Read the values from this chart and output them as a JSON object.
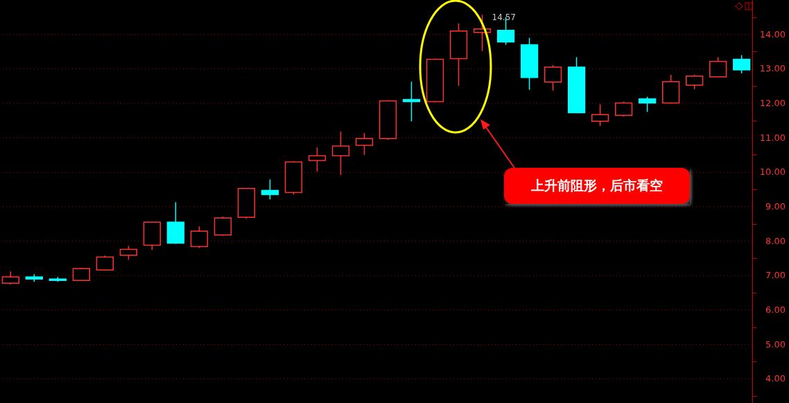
{
  "chart_data": {
    "type": "candlestick",
    "categories": [
      null,
      null,
      null,
      null,
      null,
      null,
      null,
      null,
      null,
      null,
      null,
      null,
      null,
      null,
      null,
      null,
      null,
      null,
      null,
      null,
      null,
      null,
      null,
      null,
      null,
      null,
      null,
      null,
      null,
      null,
      null,
      null
    ],
    "ohlc": [
      [
        6.78,
        7.12,
        6.74,
        6.96
      ],
      [
        6.96,
        7.04,
        6.82,
        6.9
      ],
      [
        6.9,
        6.96,
        6.82,
        6.86
      ],
      [
        6.86,
        7.22,
        6.84,
        7.2
      ],
      [
        7.16,
        7.58,
        7.14,
        7.54
      ],
      [
        7.59,
        7.86,
        7.46,
        7.76
      ],
      [
        7.88,
        8.55,
        7.74,
        8.55
      ],
      [
        8.55,
        9.13,
        7.92,
        7.94
      ],
      [
        7.84,
        8.43,
        7.8,
        8.29
      ],
      [
        8.18,
        8.71,
        8.16,
        8.67
      ],
      [
        8.69,
        9.55,
        8.65,
        9.53
      ],
      [
        9.47,
        9.79,
        9.21,
        9.35
      ],
      [
        9.41,
        10.32,
        9.35,
        10.3
      ],
      [
        10.34,
        10.72,
        10.02,
        10.48
      ],
      [
        10.48,
        11.18,
        9.92,
        10.76
      ],
      [
        10.78,
        11.14,
        10.5,
        10.98
      ],
      [
        10.98,
        12.09,
        10.94,
        12.07
      ],
      [
        12.11,
        12.63,
        11.48,
        12.05
      ],
      [
        12.05,
        13.3,
        12.03,
        13.28
      ],
      [
        13.3,
        14.32,
        12.51,
        14.1
      ],
      [
        14.06,
        14.57,
        13.52,
        14.16
      ],
      [
        14.12,
        14.5,
        13.7,
        13.78
      ],
      [
        13.7,
        13.9,
        12.39,
        12.75
      ],
      [
        12.62,
        13.11,
        12.37,
        13.05
      ],
      [
        13.05,
        13.34,
        11.73,
        11.73
      ],
      [
        11.48,
        11.97,
        11.34,
        11.67
      ],
      [
        11.65,
        12.05,
        11.61,
        12.01
      ],
      [
        12.13,
        12.19,
        11.75,
        12.01
      ],
      [
        12.01,
        12.83,
        11.99,
        12.63
      ],
      [
        12.53,
        12.83,
        12.41,
        12.79
      ],
      [
        12.77,
        13.34,
        12.77,
        13.22
      ],
      [
        13.28,
        13.4,
        12.87,
        12.97
      ]
    ],
    "colors": [
      "#ff3232",
      "#00ffff",
      "#00ffff",
      "#ff3232",
      "#ff3232",
      "#ff3232",
      "#ff3232",
      "#00ffff",
      "#ff3232",
      "#ff3232",
      "#ff3232",
      "#00ffff",
      "#ff3232",
      "#ff3232",
      "#ff3232",
      "#ff3232",
      "#ff3232",
      "#00ffff",
      "#ff3232",
      "#ff3232",
      "#ff3232",
      "#00ffff",
      "#00ffff",
      "#ff3232",
      "#00ffff",
      "#ff3232",
      "#ff3232",
      "#00ffff",
      "#ff3232",
      "#ff3232",
      "#ff3232",
      "#00ffff"
    ],
    "ylim": [
      3.3,
      15
    ],
    "yticks": [
      {
        "value": 4,
        "label": "4.00"
      },
      {
        "value": 5,
        "label": "5.00"
      },
      {
        "value": 6,
        "label": "6.00"
      },
      {
        "value": 7,
        "label": "7.00"
      },
      {
        "value": 8,
        "label": "8.00"
      },
      {
        "value": 9,
        "label": "9.00"
      },
      {
        "value": 10,
        "label": "10.00"
      },
      {
        "value": 11,
        "label": "11.00"
      },
      {
        "value": 12,
        "label": "12.00"
      },
      {
        "value": 13,
        "label": "13.00"
      },
      {
        "value": 14,
        "label": "14.00"
      },
      {
        "value": 3.5,
        "label": null
      },
      {
        "value": 4.5,
        "label": null
      },
      {
        "value": 5.5,
        "label": null
      },
      {
        "value": 6.5,
        "label": null
      },
      {
        "value": 7.5,
        "label": null
      },
      {
        "value": 8.5,
        "label": null
      },
      {
        "value": 9.5,
        "label": null
      },
      {
        "value": 10.5,
        "label": null
      },
      {
        "value": 11.5,
        "label": null
      },
      {
        "value": 12.5,
        "label": null
      },
      {
        "value": 13.5,
        "label": null
      },
      {
        "value": 14.5,
        "label": null
      }
    ],
    "grid": "y",
    "annotations": [
      {
        "text": "14.57",
        "y": 14.57
      },
      "上升前阻形，后市看空"
    ]
  }
}
